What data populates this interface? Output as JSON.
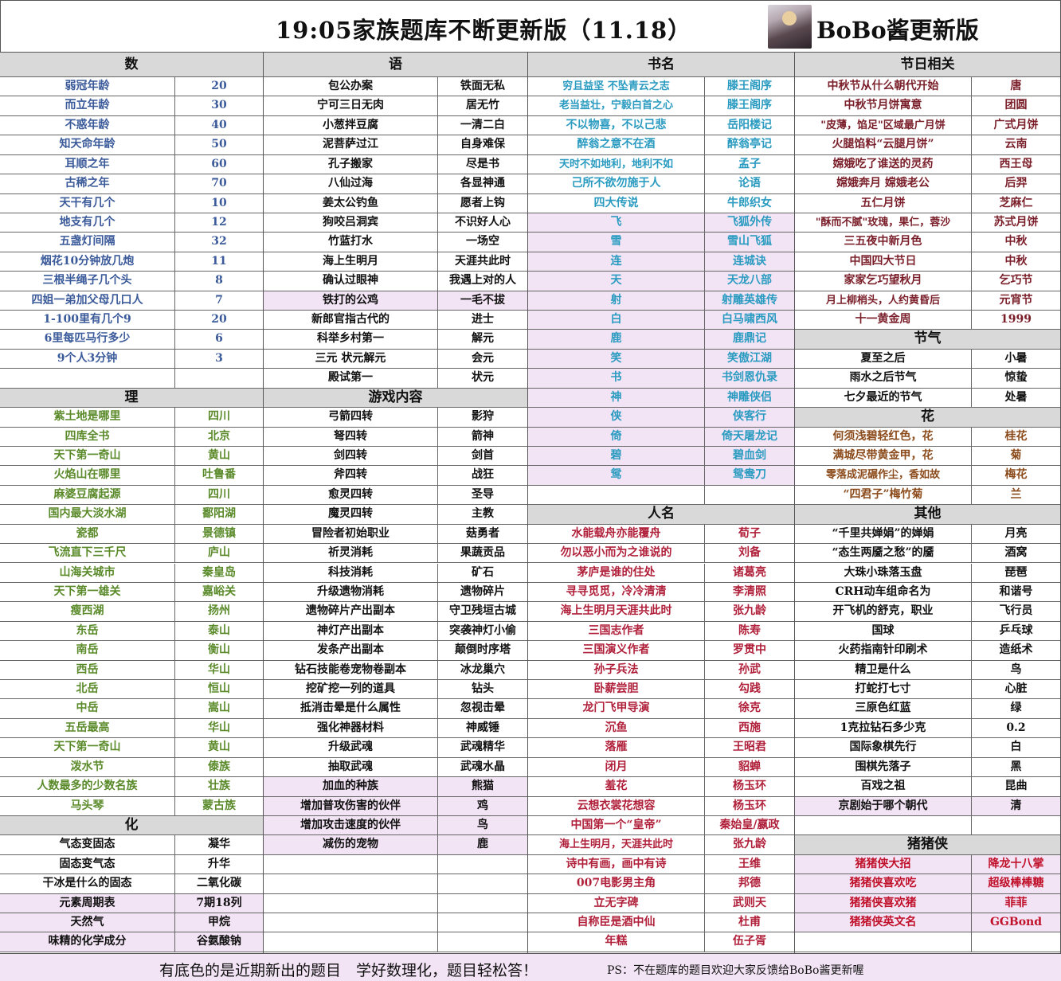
{
  "title": "19:05家族题库不断更新版（11.18）",
  "brand": "BoBo酱更新版",
  "colors": {
    "highlight": "#f3e4f5",
    "header": "#d9d9d9",
    "shu": "#3b5a9a",
    "li": "#5a8a2a",
    "hua": "#111111",
    "yu": "#111111",
    "book": "#2a9bc0",
    "person": "#b0203a",
    "festival": "#7a1f2a",
    "flower": "#8b4a1a",
    "pig": "#c0102a"
  },
  "groups": [
    {
      "rows": [
        {
          "h": "数"
        },
        {
          "q": "弱冠年龄",
          "a": "20",
          "c": "shu"
        },
        {
          "q": "而立年龄",
          "a": "30",
          "c": "shu"
        },
        {
          "q": "不惑年龄",
          "a": "40",
          "c": "shu"
        },
        {
          "q": "知天命年龄",
          "a": "50",
          "c": "shu"
        },
        {
          "q": "耳顺之年",
          "a": "60",
          "c": "shu"
        },
        {
          "q": "古稀之年",
          "a": "70",
          "c": "shu"
        },
        {
          "q": "天干有几个",
          "a": "10",
          "c": "shu"
        },
        {
          "q": "地支有几个",
          "a": "12",
          "c": "shu"
        },
        {
          "q": "五盏灯间隔",
          "a": "32",
          "c": "shu"
        },
        {
          "q": "烟花10分钟放几炮",
          "a": "11",
          "c": "shu"
        },
        {
          "q": "三根半绳子几个头",
          "a": "8",
          "c": "shu"
        },
        {
          "q": "四姐一弟加父母几口人",
          "a": "7",
          "c": "shu"
        },
        {
          "q": "1-100里有几个9",
          "a": "20",
          "c": "shu"
        },
        {
          "q": "6里每匹马行多少",
          "a": "6",
          "c": "shu"
        },
        {
          "q": "9个人3分钟",
          "a": "3",
          "c": "shu"
        },
        {
          "q": "",
          "a": ""
        },
        {
          "h": "理"
        },
        {
          "q": "紫土地是哪里",
          "a": "四川",
          "c": "li"
        },
        {
          "q": "四库全书",
          "a": "北京",
          "c": "li"
        },
        {
          "q": "天下第一奇山",
          "a": "黄山",
          "c": "li"
        },
        {
          "q": "火焰山在哪里",
          "a": "吐鲁番",
          "c": "li"
        },
        {
          "q": "麻婆豆腐起源",
          "a": "四川",
          "c": "li"
        },
        {
          "q": "国内最大淡水湖",
          "a": "鄱阳湖",
          "c": "li"
        },
        {
          "q": "瓷都",
          "a": "景德镇",
          "c": "li"
        },
        {
          "q": "飞流直下三千尺",
          "a": "庐山",
          "c": "li"
        },
        {
          "q": "山海关城市",
          "a": "秦皇岛",
          "c": "li"
        },
        {
          "q": "天下第一雄关",
          "a": "嘉峪关",
          "c": "li"
        },
        {
          "q": "瘦西湖",
          "a": "扬州",
          "c": "li"
        },
        {
          "q": "东岳",
          "a": "泰山",
          "c": "li"
        },
        {
          "q": "南岳",
          "a": "衡山",
          "c": "li"
        },
        {
          "q": "西岳",
          "a": "华山",
          "c": "li"
        },
        {
          "q": "北岳",
          "a": "恒山",
          "c": "li"
        },
        {
          "q": "中岳",
          "a": "嵩山",
          "c": "li"
        },
        {
          "q": "五岳最高",
          "a": "华山",
          "c": "li"
        },
        {
          "q": "天下第一奇山",
          "a": "黄山",
          "c": "li"
        },
        {
          "q": "泼水节",
          "a": "傣族",
          "c": "li"
        },
        {
          "q": "人数最多的少数名族",
          "a": "壮族",
          "c": "li"
        },
        {
          "q": "马头琴",
          "a": "蒙古族",
          "c": "li"
        },
        {
          "h": "化"
        },
        {
          "q": "气态变固态",
          "a": "凝华",
          "c": "hua"
        },
        {
          "q": "固态变气态",
          "a": "升华",
          "c": "hua"
        },
        {
          "q": "干冰是什么的固态",
          "a": "二氧化碳",
          "c": "hua"
        },
        {
          "q": "元素周期表",
          "a": "7期18列",
          "c": "hua",
          "hl": true
        },
        {
          "q": "天然气",
          "a": "甲烷",
          "c": "hua",
          "hl": true
        },
        {
          "q": "味精的化学成分",
          "a": "谷氨酸钠",
          "c": "hua",
          "hl": true
        }
      ]
    },
    {
      "rows": [
        {
          "h": "语"
        },
        {
          "q": "包公办案",
          "a": "铁面无私",
          "c": "yu"
        },
        {
          "q": "宁可三日无肉",
          "a": "居无竹",
          "c": "yu"
        },
        {
          "q": "小葱拌豆腐",
          "a": "一清二白",
          "c": "yu"
        },
        {
          "q": "泥菩萨过江",
          "a": "自身难保",
          "c": "yu"
        },
        {
          "q": "孔子搬家",
          "a": "尽是书",
          "c": "yu"
        },
        {
          "q": "八仙过海",
          "a": "各显神通",
          "c": "yu"
        },
        {
          "q": "姜太公钓鱼",
          "a": "愿者上钩",
          "c": "yu"
        },
        {
          "q": "狗咬吕洞宾",
          "a": "不识好人心",
          "c": "yu"
        },
        {
          "q": "竹蓝打水",
          "a": "一场空",
          "c": "yu"
        },
        {
          "q": "海上生明月",
          "a": "天涯共此时",
          "c": "yu"
        },
        {
          "q": "确认过眼神",
          "a": "我遇上对的人",
          "c": "yu"
        },
        {
          "q": "铁打的公鸡",
          "a": "一毛不拔",
          "c": "yu",
          "hl": true
        },
        {
          "q": "新郎官指古代的",
          "a": "进士",
          "c": "yu"
        },
        {
          "q": "科举乡村第一",
          "a": "解元",
          "c": "yu"
        },
        {
          "q": "三元 状元解元",
          "a": "会元",
          "c": "yu"
        },
        {
          "q": "殿试第一",
          "a": "状元",
          "c": "yu"
        },
        {
          "h": "游戏内容"
        },
        {
          "q": "弓箭四转",
          "a": "影狩",
          "c": "yu"
        },
        {
          "q": "弩四转",
          "a": "箭神",
          "c": "yu"
        },
        {
          "q": "剑四转",
          "a": "剑首",
          "c": "yu"
        },
        {
          "q": "斧四转",
          "a": "战狂",
          "c": "yu"
        },
        {
          "q": "愈灵四转",
          "a": "圣导",
          "c": "yu"
        },
        {
          "q": "魔灵四转",
          "a": "主教",
          "c": "yu"
        },
        {
          "q": "冒险者初始职业",
          "a": "菇勇者",
          "c": "yu"
        },
        {
          "q": "祈灵消耗",
          "a": "果蔬贡品",
          "c": "yu"
        },
        {
          "q": "科技消耗",
          "a": "矿石",
          "c": "yu"
        },
        {
          "q": "升级遗物消耗",
          "a": "遗物碎片",
          "c": "yu"
        },
        {
          "q": "遗物碎片产出副本",
          "a": "守卫残垣古城",
          "c": "yu"
        },
        {
          "q": "神灯产出副本",
          "a": "突袭神灯小偷",
          "c": "yu"
        },
        {
          "q": "发条产出副本",
          "a": "颠倒时序塔",
          "c": "yu"
        },
        {
          "q": "钻石技能卷宠物卷副本",
          "a": "冰龙巢穴",
          "c": "yu"
        },
        {
          "q": "挖矿挖一列的道具",
          "a": "钻头",
          "c": "yu"
        },
        {
          "q": "抵消击晕是什么属性",
          "a": "忽视击晕",
          "c": "yu"
        },
        {
          "q": "强化神器材料",
          "a": "神威锤",
          "c": "yu"
        },
        {
          "q": "升级武魂",
          "a": "武魂精华",
          "c": "yu"
        },
        {
          "q": "抽取武魂",
          "a": "武魂水晶",
          "c": "yu"
        },
        {
          "q": "加血的种族",
          "a": "熊猫",
          "c": "yu",
          "hl": true
        },
        {
          "q": "增加普攻伤害的伙伴",
          "a": "鸡",
          "c": "yu",
          "hl": true
        },
        {
          "q": "增加攻击速度的伙伴",
          "a": "鸟",
          "c": "yu",
          "hl": true
        },
        {
          "q": "减伤的宠物",
          "a": "鹿",
          "c": "yu",
          "hl": true
        },
        {
          "q": "",
          "a": ""
        },
        {
          "q": "",
          "a": ""
        },
        {
          "q": "",
          "a": ""
        },
        {
          "q": "",
          "a": ""
        },
        {
          "q": "",
          "a": ""
        }
      ]
    },
    {
      "rows": [
        {
          "h": "书名"
        },
        {
          "q": "穷且益坚 不坠青云之志",
          "a": "滕王阁序",
          "c": "book"
        },
        {
          "q": "老当益壮，宁毅白首之心",
          "a": "滕王阁序",
          "c": "book"
        },
        {
          "q": "不以物喜，不以己悲",
          "a": "岳阳楼记",
          "c": "book"
        },
        {
          "q": "醉翁之意不在酒",
          "a": "醉翁亭记",
          "c": "book"
        },
        {
          "q": "天时不如地利，地利不如",
          "a": "孟子",
          "c": "book"
        },
        {
          "q": "己所不欲勿施于人",
          "a": "论语",
          "c": "book"
        },
        {
          "q": "四大传说",
          "a": "牛郎织女",
          "c": "book"
        },
        {
          "q": "飞",
          "a": "飞狐外传",
          "c": "book",
          "hl": true
        },
        {
          "q": "雪",
          "a": "雪山飞狐",
          "c": "book",
          "hl": true
        },
        {
          "q": "连",
          "a": "连城诀",
          "c": "book",
          "hl": true
        },
        {
          "q": "天",
          "a": "天龙八部",
          "c": "book",
          "hl": true
        },
        {
          "q": "射",
          "a": "射雕英雄传",
          "c": "book",
          "hl": true
        },
        {
          "q": "白",
          "a": "白马啸西风",
          "c": "book",
          "hl": true
        },
        {
          "q": "鹿",
          "a": "鹿鼎记",
          "c": "book",
          "hl": true
        },
        {
          "q": "笑",
          "a": "笑傲江湖",
          "c": "book",
          "hl": true
        },
        {
          "q": "书",
          "a": "书剑恩仇录",
          "c": "book",
          "hl": true
        },
        {
          "q": "神",
          "a": "神雕侠侣",
          "c": "book",
          "hl": true
        },
        {
          "q": "侠",
          "a": "侠客行",
          "c": "book",
          "hl": true
        },
        {
          "q": "倚",
          "a": "倚天屠龙记",
          "c": "book",
          "hl": true
        },
        {
          "q": "碧",
          "a": "碧血剑",
          "c": "book",
          "hl": true
        },
        {
          "q": "鸳",
          "a": "鸳鸯刀",
          "c": "book",
          "hl": true
        },
        {
          "q": "",
          "a": ""
        },
        {
          "h": "人名"
        },
        {
          "q": "水能载舟亦能覆舟",
          "a": "荀子",
          "c": "person"
        },
        {
          "q": "勿以恶小而为之谁说的",
          "a": "刘备",
          "c": "person"
        },
        {
          "q": "茅庐是谁的住处",
          "a": "诸葛亮",
          "c": "person"
        },
        {
          "q": "寻寻觅觅，冷冷清清",
          "a": "李清照",
          "c": "person"
        },
        {
          "q": "海上生明月天涯共此时",
          "a": "张九龄",
          "c": "person"
        },
        {
          "q": "三国志作者",
          "a": "陈寿",
          "c": "person"
        },
        {
          "q": "三国演义作者",
          "a": "罗贯中",
          "c": "person"
        },
        {
          "q": "孙子兵法",
          "a": "孙武",
          "c": "person"
        },
        {
          "q": "卧薪尝胆",
          "a": "勾践",
          "c": "person"
        },
        {
          "q": "龙门飞甲导演",
          "a": "徐克",
          "c": "person"
        },
        {
          "q": "沉鱼",
          "a": "西施",
          "c": "person"
        },
        {
          "q": "落雁",
          "a": "王昭君",
          "c": "person"
        },
        {
          "q": "闭月",
          "a": "貂蝉",
          "c": "person"
        },
        {
          "q": "羞花",
          "a": "杨玉环",
          "c": "person"
        },
        {
          "q": "云想衣裳花想容",
          "a": "杨玉环",
          "c": "person"
        },
        {
          "q": "中国第一个“皇帝”",
          "a": "秦始皇/嬴政",
          "c": "person"
        },
        {
          "q": "海上生明月，天涯共此时",
          "a": "张九龄",
          "c": "person"
        },
        {
          "q": "诗中有画，画中有诗",
          "a": "王维",
          "c": "person"
        },
        {
          "q": "007电影男主角",
          "a": "邦德",
          "c": "person"
        },
        {
          "q": "立无字碑",
          "a": "武则天",
          "c": "person"
        },
        {
          "q": "自称臣是酒中仙",
          "a": "杜甫",
          "c": "person"
        },
        {
          "q": "年糕",
          "a": "伍子胥",
          "c": "person"
        }
      ]
    },
    {
      "rows": [
        {
          "h": "节日相关"
        },
        {
          "q": "中秋节从什么朝代开始",
          "a": "唐",
          "c": "festival"
        },
        {
          "q": "中秋节月饼寓意",
          "a": "团圆",
          "c": "festival"
        },
        {
          "q": "\"皮薄，馅足\"区域最广月饼",
          "a": "广式月饼",
          "c": "festival"
        },
        {
          "q": "火腿馅料“云腿月饼”",
          "a": "云南",
          "c": "festival"
        },
        {
          "q": "嫦娥吃了谁送的灵药",
          "a": "西王母",
          "c": "festival"
        },
        {
          "q": "嫦娥奔月 嫦娥老公",
          "a": "后羿",
          "c": "festival"
        },
        {
          "q": "五仁月饼",
          "a": "芝麻仁",
          "c": "festival"
        },
        {
          "q": "\"酥而不腻\"玫瑰，果仁，蓉沙",
          "a": "苏式月饼",
          "c": "festival"
        },
        {
          "q": "三五夜中新月色",
          "a": "中秋",
          "c": "festival"
        },
        {
          "q": "中国四大节日",
          "a": "中秋",
          "c": "festival"
        },
        {
          "q": "家家乞巧望秋月",
          "a": "乞巧节",
          "c": "festival"
        },
        {
          "q": "月上柳梢头，人约黄昏后",
          "a": "元宵节",
          "c": "festival"
        },
        {
          "q": "十一黄金周",
          "a": "1999",
          "c": "festival"
        },
        {
          "h": "节气"
        },
        {
          "q": "夏至之后",
          "a": "小暑",
          "c": "hua"
        },
        {
          "q": "雨水之后节气",
          "a": "惊蛰",
          "c": "hua"
        },
        {
          "q": "七夕最近的节气",
          "a": "处暑",
          "c": "hua"
        },
        {
          "h": "花"
        },
        {
          "q": "何须浅碧轻红色，花",
          "a": "桂花",
          "c": "flower"
        },
        {
          "q": "满城尽带黄金甲，花",
          "a": "菊",
          "c": "flower"
        },
        {
          "q": "零落成泥碾作尘，香如故",
          "a": "梅花",
          "c": "flower"
        },
        {
          "q": "“四君子”梅竹菊",
          "a": "兰",
          "c": "flower"
        },
        {
          "h": "其他"
        },
        {
          "q": "“千里共婵娟”的婵娟",
          "a": "月亮",
          "c": "hua"
        },
        {
          "q": "“态生两靥之愁”的靥",
          "a": "酒窝",
          "c": "hua"
        },
        {
          "q": "大珠小珠落玉盘",
          "a": "琵琶",
          "c": "hua"
        },
        {
          "q": "CRH动车组命名为",
          "a": "和谐号",
          "c": "hua"
        },
        {
          "q": "开飞机的舒克，职业",
          "a": "飞行员",
          "c": "hua"
        },
        {
          "q": "国球",
          "a": "乒乓球",
          "c": "hua"
        },
        {
          "q": "火药指南针印刷术",
          "a": "造纸术",
          "c": "hua"
        },
        {
          "q": "精卫是什么",
          "a": "鸟",
          "c": "hua"
        },
        {
          "q": "打蛇打七寸",
          "a": "心脏",
          "c": "hua"
        },
        {
          "q": "三原色红蓝",
          "a": "绿",
          "c": "hua"
        },
        {
          "q": "1克拉钻石多少克",
          "a": "0.2",
          "c": "hua"
        },
        {
          "q": "国际象棋先行",
          "a": "白",
          "c": "hua"
        },
        {
          "q": "围棋先落子",
          "a": "黑",
          "c": "hua"
        },
        {
          "q": "百戏之祖",
          "a": "昆曲",
          "c": "hua"
        },
        {
          "q": "京剧始于哪个朝代",
          "a": "清",
          "c": "hua",
          "hl": true
        },
        {
          "q": "",
          "a": ""
        },
        {
          "h": "猪猪侠"
        },
        {
          "q": "猪猪侠大招",
          "a": "降龙十八掌",
          "c": "pig",
          "hl": true
        },
        {
          "q": "猪猪侠喜欢吃",
          "a": "超级棒棒糖",
          "c": "pig",
          "hl": true
        },
        {
          "q": "猪猪侠喜欢猪",
          "a": "菲菲",
          "c": "pig",
          "hl": true
        },
        {
          "q": "猪猪侠英文名",
          "a": "GGBond",
          "c": "pig",
          "hl": true
        },
        {
          "q": "",
          "a": ""
        }
      ]
    }
  ],
  "footer": {
    "note": "有底色的是近期新出的题目　学好数理化，题目轻松答！",
    "ps": "PS：不在题库的题目欢迎大家反馈给BoBo酱更新喔"
  }
}
